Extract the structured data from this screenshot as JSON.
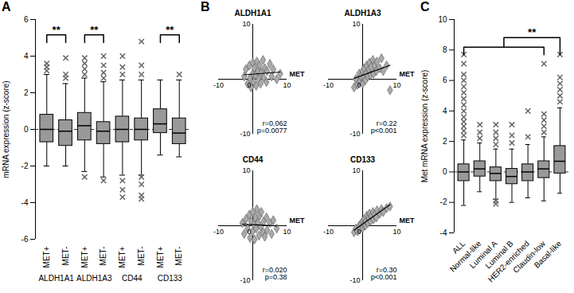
{
  "chart_data": [
    {
      "type": "box",
      "panel": "A",
      "ylabel": "mRNA expression (z-score)",
      "categories": [
        "MET+",
        "MET-",
        "MET+",
        "MET-",
        "MET+",
        "MET-",
        "MET+",
        "MET-"
      ],
      "groups": [
        "ALDH1A1",
        "ALDH1A3",
        "CD44",
        "CD133"
      ],
      "ylim": [
        -6,
        6
      ],
      "yticks": [
        -6,
        -4,
        -2,
        0,
        2,
        4,
        6
      ],
      "reference_y": 0,
      "color": "#999999",
      "marker": "times",
      "boxes": [
        {
          "q1": -0.7,
          "median": 0,
          "q3": 0.8,
          "whisker_low": -2,
          "whisker_high": 3,
          "outliers": [
            3.2,
            3.4,
            3.6
          ]
        },
        {
          "q1": -0.9,
          "median": -0.1,
          "q3": 0.5,
          "whisker_low": -2,
          "whisker_high": 2.5,
          "outliers": [
            2.8,
            3.0,
            3.9
          ]
        },
        {
          "q1": -0.6,
          "median": 0.2,
          "q3": 0.9,
          "whisker_low": -2.3,
          "whisker_high": 2.8,
          "outliers": [
            3.0,
            3.3,
            3.6,
            3.9,
            -2.6
          ]
        },
        {
          "q1": -0.8,
          "median": -0.1,
          "q3": 0.4,
          "whisker_low": -2.6,
          "whisker_high": 2.6,
          "outliers": [
            2.8,
            3.1,
            3.5,
            4.0,
            -2.8
          ]
        },
        {
          "q1": -0.7,
          "median": 0,
          "q3": 0.7,
          "whisker_low": -2.5,
          "whisker_high": 2.7,
          "outliers": [
            3.0,
            3.4,
            4.0,
            -2.8,
            -3.3,
            -3.7
          ]
        },
        {
          "q1": -0.6,
          "median": 0,
          "q3": 0.6,
          "whisker_low": -2.5,
          "whisker_high": 2.7,
          "outliers": [
            3.0,
            3.5,
            4.8,
            -2.6,
            -3.0,
            -3.6,
            -3.8
          ]
        },
        {
          "q1": -0.2,
          "median": 0.3,
          "q3": 1.1,
          "whisker_low": -1.4,
          "whisker_high": 2.7,
          "outliers": []
        },
        {
          "q1": -0.8,
          "median": -0.2,
          "q3": 0.6,
          "whisker_low": -1.5,
          "whisker_high": 2.7,
          "outliers": [
            3.0
          ]
        }
      ],
      "significance": [
        {
          "from": 0,
          "to": 1,
          "label": "**"
        },
        {
          "from": 2,
          "to": 3,
          "label": "**"
        },
        {
          "from": 6,
          "to": 7,
          "label": "**"
        }
      ]
    },
    {
      "type": "scatter",
      "panel": "B",
      "title": "ALDH1A1",
      "xlabel": "MET",
      "xlim": [
        -10,
        10
      ],
      "ylim": [
        -10,
        10
      ],
      "xticks": [
        -10,
        0,
        10
      ],
      "yticks": [
        -10,
        10
      ],
      "color": "#aaaaaa",
      "marker": "diamond",
      "annotations": [
        "r=0.062",
        "p=0.0077"
      ],
      "points": [
        [
          -2.5,
          0.5
        ],
        [
          -2,
          1.8
        ],
        [
          -1.5,
          -0.8
        ],
        [
          -1,
          2.5
        ],
        [
          -0.8,
          0.2
        ],
        [
          -0.5,
          -1.5
        ],
        [
          0,
          1
        ],
        [
          0,
          3
        ],
        [
          0.3,
          -0.5
        ],
        [
          0.5,
          2
        ],
        [
          0.8,
          0.8
        ],
        [
          1,
          -1.2
        ],
        [
          1.2,
          3.2
        ],
        [
          1.5,
          1.5
        ],
        [
          1.8,
          0
        ],
        [
          2,
          2.5
        ],
        [
          2.3,
          -0.8
        ],
        [
          2.5,
          1.2
        ],
        [
          3,
          3.5
        ],
        [
          3.2,
          0.3
        ],
        [
          3.5,
          2
        ],
        [
          4,
          -0.5
        ],
        [
          4.2,
          1.5
        ],
        [
          5,
          2.8
        ],
        [
          5.5,
          0.5
        ],
        [
          6,
          1.8
        ],
        [
          7,
          0
        ],
        [
          8,
          1
        ]
      ]
    },
    {
      "type": "scatter",
      "title": "ALDH1A3",
      "xlabel": "MET",
      "xlim": [
        -10,
        10
      ],
      "ylim": [
        -10,
        10
      ],
      "xticks": [
        -10,
        0,
        10
      ],
      "yticks": [
        -10,
        10
      ],
      "color": "#aaaaaa",
      "marker": "diamond",
      "annotations": [
        "r=0.22",
        "p<0.001"
      ],
      "points": [
        [
          -2.5,
          -1.5
        ],
        [
          -2,
          0
        ],
        [
          -1.5,
          -1
        ],
        [
          -1,
          1
        ],
        [
          -0.8,
          -0.3
        ],
        [
          -0.5,
          0.5
        ],
        [
          0,
          -0.8
        ],
        [
          0,
          1.5
        ],
        [
          0.3,
          0.3
        ],
        [
          0.5,
          2
        ],
        [
          0.8,
          -0.2
        ],
        [
          1,
          1
        ],
        [
          1.2,
          2.5
        ],
        [
          1.5,
          0.5
        ],
        [
          1.8,
          1.8
        ],
        [
          2,
          3
        ],
        [
          2.3,
          0.8
        ],
        [
          2.5,
          2.2
        ],
        [
          3,
          3.5
        ],
        [
          3.2,
          1
        ],
        [
          3.5,
          2.5
        ],
        [
          4,
          1.5
        ],
        [
          4.2,
          3.2
        ],
        [
          5,
          2
        ],
        [
          5.5,
          3.8
        ],
        [
          6,
          1.5
        ],
        [
          7,
          2.5
        ],
        [
          8,
          -2
        ]
      ]
    },
    {
      "type": "scatter",
      "title": "CD44",
      "xlabel": "MET",
      "xlim": [
        -10,
        10
      ],
      "ylim": [
        -10,
        10
      ],
      "xticks": [
        -10,
        0,
        10
      ],
      "yticks": [
        -10,
        10
      ],
      "color": "#aaaaaa",
      "marker": "diamond",
      "annotations": [
        "r=0.020",
        "p=0.38"
      ],
      "points": [
        [
          -3,
          0.5
        ],
        [
          -2.5,
          -1.5
        ],
        [
          -2,
          1.2
        ],
        [
          -1.5,
          -0.5
        ],
        [
          -1,
          2
        ],
        [
          -0.8,
          -2.2
        ],
        [
          -0.5,
          0.8
        ],
        [
          0,
          -1
        ],
        [
          0,
          2.5
        ],
        [
          0.3,
          0.2
        ],
        [
          0.5,
          -2.5
        ],
        [
          0.8,
          1.5
        ],
        [
          1,
          -0.5
        ],
        [
          1.2,
          3
        ],
        [
          1.5,
          0.5
        ],
        [
          1.8,
          -1.8
        ],
        [
          2,
          1.8
        ],
        [
          2.3,
          -0.2
        ],
        [
          2.5,
          2.5
        ],
        [
          3,
          -1.2
        ],
        [
          3.2,
          0.8
        ],
        [
          3.5,
          -2
        ],
        [
          4,
          1.5
        ],
        [
          4.2,
          -0.8
        ],
        [
          5,
          0.5
        ],
        [
          5.5,
          -1.5
        ],
        [
          6,
          1
        ],
        [
          7,
          -0.5
        ]
      ]
    },
    {
      "type": "scatter",
      "title": "CD133",
      "xlabel": "MET",
      "xlim": [
        -10,
        10
      ],
      "ylim": [
        -10,
        10
      ],
      "xticks": [
        -10,
        0,
        10
      ],
      "yticks": [
        -10,
        10
      ],
      "color": "#aaaaaa",
      "marker": "diamond",
      "annotations": [
        "r=0.30",
        "p<0.001"
      ],
      "points": [
        [
          -2.5,
          -1.2
        ],
        [
          -2,
          -0.5
        ],
        [
          -1.5,
          -1
        ],
        [
          -1,
          0
        ],
        [
          -0.8,
          -0.6
        ],
        [
          -0.5,
          0.3
        ],
        [
          0,
          -0.4
        ],
        [
          0,
          0.8
        ],
        [
          0.3,
          0.2
        ],
        [
          0.5,
          1.2
        ],
        [
          0.8,
          0
        ],
        [
          1,
          0.8
        ],
        [
          1.2,
          1.8
        ],
        [
          1.5,
          0.5
        ],
        [
          1.8,
          1.5
        ],
        [
          2,
          2.2
        ],
        [
          2.3,
          0.8
        ],
        [
          2.5,
          1.8
        ],
        [
          3,
          2.5
        ],
        [
          3.2,
          1.2
        ],
        [
          3.5,
          2
        ],
        [
          4,
          1.5
        ],
        [
          4.2,
          2.8
        ],
        [
          5,
          2.2
        ],
        [
          5.5,
          3
        ],
        [
          6,
          2.5
        ],
        [
          7,
          3.2
        ],
        [
          8,
          3.5
        ]
      ]
    },
    {
      "type": "box",
      "panel": "C",
      "ylabel": "Met mRNA expression (z-score)",
      "categories": [
        "ALL",
        "Normal-like",
        "Luminal A",
        "Luminal B",
        "HER2-enriched",
        "Claudin-low",
        "Basal-like"
      ],
      "ylim": [
        -4,
        10
      ],
      "yticks": [
        -4,
        -2,
        0,
        2,
        4,
        6,
        8,
        10
      ],
      "reference_y": 0,
      "color": "#999999",
      "marker": "times",
      "boxes": [
        {
          "q1": -0.6,
          "median": 0,
          "q3": 0.5,
          "whisker_low": -2.2,
          "whisker_high": 2.1,
          "outliers": [
            2.4,
            2.7,
            3.0,
            3.3,
            3.6,
            4.0,
            4.4,
            4.8,
            5.2,
            5.6,
            6.0,
            6.4,
            7.1,
            7.7
          ]
        },
        {
          "q1": -0.3,
          "median": 0.2,
          "q3": 0.7,
          "whisker_low": -1.3,
          "whisker_high": 1.9,
          "outliers": [
            2.2,
            2.6,
            3.1
          ]
        },
        {
          "q1": -0.6,
          "median": -0.1,
          "q3": 0.3,
          "whisker_low": -1.8,
          "whisker_high": 1.5,
          "outliers": [
            1.8,
            2.2,
            2.6,
            3.1,
            -1.9,
            -2.1
          ]
        },
        {
          "q1": -0.8,
          "median": -0.3,
          "q3": 0.2,
          "whisker_low": -2.0,
          "whisker_high": 1.5,
          "outliers": [
            1.9,
            2.4,
            3.1
          ]
        },
        {
          "q1": -0.6,
          "median": 0,
          "q3": 0.5,
          "whisker_low": -1.7,
          "whisker_high": 1.8,
          "outliers": [
            2.3,
            4.0
          ]
        },
        {
          "q1": -0.4,
          "median": 0.2,
          "q3": 0.7,
          "whisker_low": -1.9,
          "whisker_high": 2.3,
          "outliers": [
            2.6,
            3.0,
            3.4,
            3.8,
            7.1
          ]
        },
        {
          "q1": -0.1,
          "median": 0.7,
          "q3": 1.7,
          "whisker_low": -1.4,
          "whisker_high": 4.2,
          "outliers": [
            4.6,
            5.0,
            5.4,
            5.8,
            6.2,
            7.7
          ]
        }
      ],
      "significance": [
        {
          "from": 0,
          "to": 5,
          "vs": 6,
          "label": "**"
        }
      ]
    }
  ]
}
